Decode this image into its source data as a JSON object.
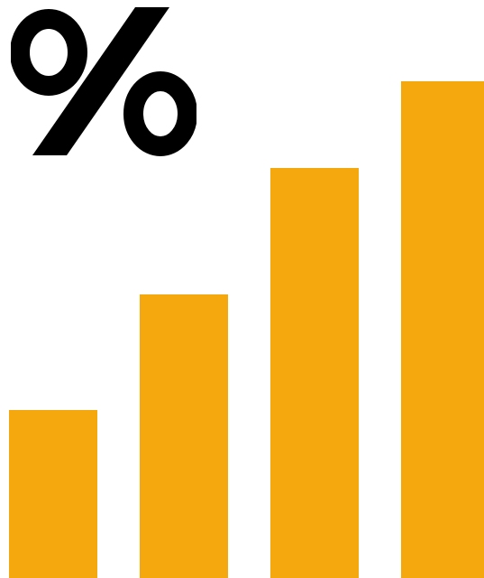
{
  "icon": {
    "name": "percent-icon",
    "color": "#000000"
  },
  "bars": {
    "color": "#F5A70E",
    "levels": [
      0.29,
      0.49,
      0.71,
      0.86
    ]
  }
}
